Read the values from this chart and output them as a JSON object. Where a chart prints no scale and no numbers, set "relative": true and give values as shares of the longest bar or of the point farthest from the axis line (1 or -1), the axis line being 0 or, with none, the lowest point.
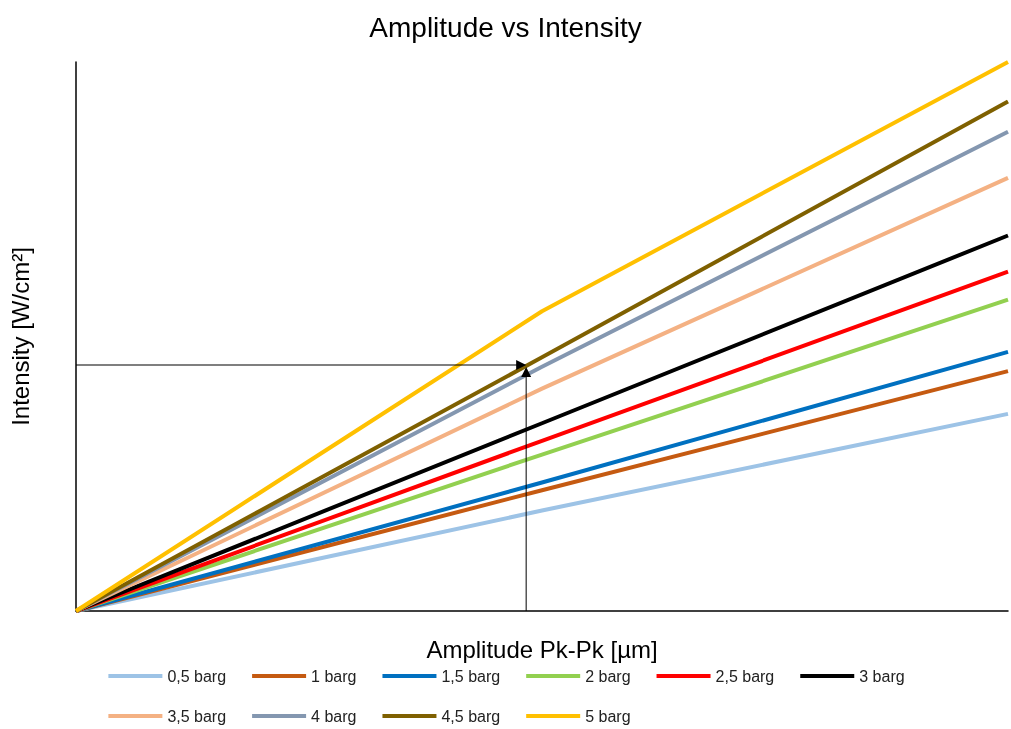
{
  "chart_data": {
    "type": "line",
    "title": "Amplitude vs Intensity",
    "xlabel": "Amplitude Pk-Pk [µm]",
    "ylabel": "Intensity [W/cm²]",
    "relative": true,
    "categories": [
      null,
      null,
      null
    ],
    "legend": "bottom",
    "grid": false,
    "marker": "none",
    "line_style": "solid",
    "series": [
      {
        "name": "0,5 barg",
        "color": "#9dc3e6",
        "values": [
          0,
          0.183,
          0.359
        ]
      },
      {
        "name": "1 barg",
        "color": "#c55a11",
        "values": [
          0,
          0.22,
          0.437
        ]
      },
      {
        "name": "1,5 barg",
        "color": "#0070c0",
        "values": [
          0,
          0.234,
          0.472
        ]
      },
      {
        "name": "2 barg",
        "color": "#92d050",
        "values": [
          0,
          0.285,
          0.567
        ]
      },
      {
        "name": "2,5 barg",
        "color": "#ff0000",
        "values": [
          0,
          0.31,
          0.618
        ]
      },
      {
        "name": "3 barg",
        "color": "#000000",
        "values": [
          0,
          0.342,
          0.684
        ]
      },
      {
        "name": "3,5 barg",
        "color": "#f4b183",
        "values": [
          0,
          0.405,
          0.789
        ]
      },
      {
        "name": "4 barg",
        "color": "#8497b0",
        "values": [
          0,
          0.445,
          0.873
        ]
      },
      {
        "name": "4,5 barg",
        "color": "#7f6000",
        "values": [
          0,
          0.462,
          0.928
        ]
      },
      {
        "name": "5 barg",
        "color": "#ffc000",
        "values": [
          0,
          0.546,
          1
        ]
      }
    ]
  }
}
